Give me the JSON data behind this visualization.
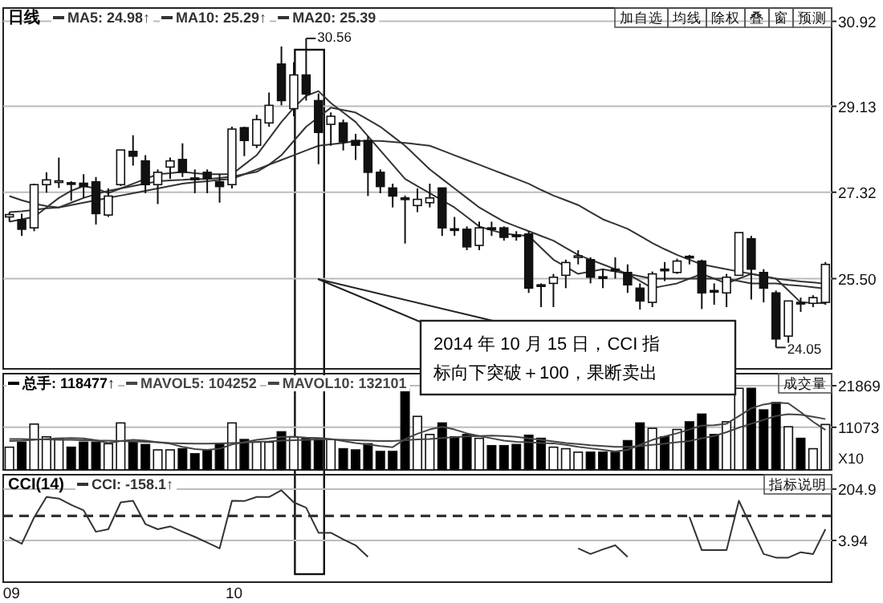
{
  "chart_data": [
    {
      "type": "candlestick",
      "title": "日线",
      "categories": [
        null,
        null,
        null,
        null,
        null,
        null,
        null,
        null,
        null,
        null,
        null,
        null,
        null,
        null,
        null,
        null,
        null,
        null,
        null,
        null,
        null,
        null,
        null,
        null,
        null,
        null,
        null,
        null,
        null,
        null,
        null,
        null,
        null,
        null,
        null,
        null,
        null,
        null,
        null,
        null,
        null,
        null,
        null,
        null,
        null,
        null,
        null,
        null,
        null,
        null,
        null,
        null,
        null,
        null,
        null,
        null,
        null,
        null,
        null,
        null,
        null,
        null,
        null,
        null,
        null,
        null,
        null
      ],
      "ohlc": [
        [
          26.8,
          26.9,
          26.7,
          26.85
        ],
        [
          26.74,
          26.87,
          26.4,
          26.54
        ],
        [
          26.57,
          27.5,
          26.5,
          27.48
        ],
        [
          27.48,
          27.74,
          27.31,
          27.58
        ],
        [
          27.55,
          28.05,
          27.41,
          27.56
        ],
        [
          27.52,
          27.55,
          27.14,
          27.5
        ],
        [
          27.51,
          27.7,
          27.2,
          27.44
        ],
        [
          27.54,
          27.64,
          26.64,
          26.87
        ],
        [
          26.84,
          27.4,
          26.8,
          27.24
        ],
        [
          27.48,
          28.21,
          27.45,
          28.21
        ],
        [
          28.18,
          28.52,
          27.88,
          28.08
        ],
        [
          27.98,
          28.1,
          27.3,
          27.48
        ],
        [
          27.48,
          27.8,
          27.07,
          27.74
        ],
        [
          27.85,
          28.05,
          27.6,
          27.98
        ],
        [
          28.01,
          28.35,
          27.64,
          27.74
        ],
        [
          27.62,
          27.8,
          27.3,
          27.6
        ],
        [
          27.74,
          27.8,
          27.3,
          27.61
        ],
        [
          27.54,
          27.7,
          27.1,
          27.44
        ],
        [
          27.48,
          28.7,
          27.4,
          28.65
        ],
        [
          28.68,
          28.7,
          28.08,
          28.41
        ],
        [
          28.31,
          28.95,
          28.25,
          28.85
        ],
        [
          28.78,
          29.42,
          28.7,
          29.15
        ],
        [
          30.02,
          30.39,
          29.15,
          29.25
        ],
        [
          29.08,
          30.06,
          28.92,
          29.79
        ],
        [
          29.79,
          30.56,
          29.25,
          29.39
        ],
        [
          29.25,
          29.4,
          27.91,
          28.58
        ],
        [
          28.75,
          29.0,
          28.3,
          28.92
        ],
        [
          28.78,
          28.85,
          28.2,
          28.38
        ],
        [
          28.41,
          28.55,
          28.0,
          28.31
        ],
        [
          28.41,
          28.5,
          27.24,
          27.74
        ],
        [
          27.74,
          27.8,
          27.3,
          27.44
        ],
        [
          27.41,
          27.5,
          27.0,
          27.24
        ],
        [
          27.2,
          27.25,
          26.24,
          27.18
        ],
        [
          27.04,
          27.4,
          26.9,
          27.17
        ],
        [
          27.1,
          27.5,
          27.0,
          27.2
        ],
        [
          27.41,
          27.41,
          26.4,
          26.57
        ],
        [
          26.55,
          26.8,
          26.4,
          26.52
        ],
        [
          26.54,
          26.6,
          26.1,
          26.17
        ],
        [
          26.2,
          26.7,
          26.1,
          26.57
        ],
        [
          26.57,
          26.7,
          26.4,
          26.55
        ],
        [
          26.57,
          26.6,
          26.3,
          26.37
        ],
        [
          26.42,
          26.5,
          26.3,
          26.4
        ],
        [
          26.44,
          26.5,
          25.2,
          25.3
        ],
        [
          25.37,
          25.4,
          24.9,
          25.35
        ],
        [
          25.4,
          25.6,
          24.9,
          25.53
        ],
        [
          25.57,
          25.9,
          25.3,
          25.84
        ],
        [
          25.96,
          26.1,
          25.8,
          25.98
        ],
        [
          25.9,
          25.95,
          25.4,
          25.53
        ],
        [
          25.54,
          25.7,
          25.3,
          25.52
        ],
        [
          25.7,
          25.95,
          25.5,
          25.68
        ],
        [
          25.63,
          25.8,
          25.2,
          25.37
        ],
        [
          25.3,
          25.4,
          24.85,
          25.03
        ],
        [
          25.0,
          25.65,
          24.9,
          25.6
        ],
        [
          25.7,
          25.85,
          25.45,
          25.68
        ],
        [
          25.63,
          25.92,
          25.6,
          25.87
        ],
        [
          25.97,
          26.0,
          25.8,
          25.95
        ],
        [
          25.87,
          25.9,
          24.86,
          25.2
        ],
        [
          25.25,
          25.4,
          24.95,
          25.23
        ],
        [
          25.2,
          25.6,
          24.9,
          25.53
        ],
        [
          25.57,
          26.47,
          25.57,
          26.47
        ],
        [
          26.34,
          26.4,
          25.06,
          25.7
        ],
        [
          25.63,
          25.7,
          25.0,
          25.3
        ],
        [
          25.2,
          25.25,
          24.05,
          24.23
        ],
        [
          24.29,
          25.03,
          24.15,
          25.03
        ],
        [
          25.0,
          25.1,
          24.8,
          24.98
        ],
        [
          24.98,
          25.15,
          24.9,
          25.1
        ],
        [
          25.0,
          25.85,
          24.95,
          25.8
        ]
      ],
      "series": [
        {
          "name": "MA5: 24.98↑",
          "type": "line",
          "color": "#333333",
          "values": [
            26.7,
            26.75,
            26.8,
            27.0,
            27.2,
            27.35,
            27.45,
            27.4,
            27.3,
            27.4,
            27.5,
            27.6,
            27.7,
            27.72,
            27.75,
            27.72,
            27.7,
            27.7,
            27.7,
            27.9,
            28.1,
            28.45,
            28.8,
            29.1,
            29.35,
            29.45,
            29.2,
            29.0,
            28.8,
            28.5,
            28.2,
            27.9,
            27.6,
            27.45,
            27.3,
            27.15,
            27.0,
            26.8,
            26.6,
            26.52,
            26.45,
            26.42,
            26.4,
            26.15,
            25.9,
            25.75,
            25.6,
            25.65,
            25.7,
            25.65,
            25.6,
            25.45,
            25.3,
            25.35,
            25.4,
            25.5,
            25.6,
            25.5,
            25.4,
            25.5,
            25.6,
            25.55,
            25.5,
            25.25,
            25.0,
            24.99,
            24.98
          ]
        },
        {
          "name": "MA10: 25.29↑",
          "type": "line",
          "color": "#333333",
          "values": [
            26.9,
            26.92,
            26.95,
            26.98,
            27.0,
            27.1,
            27.2,
            27.28,
            27.35,
            27.4,
            27.45,
            27.5,
            27.55,
            27.57,
            27.58,
            27.6,
            27.6,
            27.62,
            27.65,
            27.7,
            27.75,
            27.9,
            28.1,
            28.4,
            28.7,
            28.9,
            29.1,
            29.05,
            29.0,
            28.85,
            28.7,
            28.5,
            28.3,
            28.05,
            27.8,
            27.6,
            27.4,
            27.2,
            27.0,
            26.85,
            26.7,
            26.6,
            26.5,
            26.4,
            26.3,
            26.15,
            26.0,
            25.9,
            25.8,
            25.7,
            25.6,
            25.55,
            25.5,
            25.5,
            25.5,
            25.5,
            25.5,
            25.5,
            25.5,
            25.45,
            25.4,
            25.4,
            25.4,
            25.37,
            25.35,
            25.32,
            25.29
          ]
        },
        {
          "name": "MA20: 25.39",
          "type": "line",
          "color": "#333333",
          "values": [
            27.24,
            27.15,
            27.08,
            27.03,
            27.0,
            27.05,
            27.1,
            27.15,
            27.2,
            27.25,
            27.3,
            27.35,
            27.4,
            27.45,
            27.5,
            27.53,
            27.55,
            27.58,
            27.6,
            27.7,
            27.8,
            27.9,
            28.0,
            28.1,
            28.2,
            28.3,
            28.33,
            28.36,
            28.4,
            28.4,
            28.4,
            28.38,
            28.36,
            28.33,
            28.3,
            28.2,
            28.1,
            28.0,
            27.9,
            27.8,
            27.7,
            27.6,
            27.5,
            27.37,
            27.25,
            27.15,
            27.05,
            26.9,
            26.75,
            26.65,
            26.55,
            26.4,
            26.25,
            26.12,
            26.0,
            25.9,
            25.8,
            25.75,
            25.7,
            25.65,
            25.6,
            25.55,
            25.5,
            25.47,
            25.44,
            25.42,
            25.39
          ]
        }
      ],
      "ylim": [
        23.6,
        31.2
      ],
      "yticks": [
        30.92,
        29.13,
        27.32,
        {
          "value": 25.5,
          "label": "25.50"
        }
      ],
      "grid": "y",
      "tick_labels": "y",
      "legend": "top left",
      "annotations": [
        "加自选",
        "均线",
        "除权",
        "叠",
        "窗",
        "预测",
        "2014 年 10 月 15 日，CCI 指标向下突破＋100，果断卖出",
        "30.56",
        "24.05"
      ]
    },
    {
      "type": "bar",
      "categories": [
        null,
        null,
        null,
        null,
        null,
        null,
        null,
        null,
        null,
        null,
        null,
        null,
        null,
        null,
        null,
        null,
        null,
        null,
        null,
        null,
        null,
        null,
        null,
        null,
        null,
        null,
        null,
        null,
        null,
        null,
        null,
        null,
        null,
        null,
        null,
        null,
        null,
        null,
        null,
        null,
        null,
        null,
        null,
        null,
        null,
        null,
        null,
        null,
        null,
        null,
        null,
        null,
        null,
        null,
        null,
        null,
        null,
        null,
        null,
        null,
        null,
        null,
        null,
        null,
        null,
        null,
        null
      ],
      "series": [
        {
          "name": "总手: 118477↑",
          "type": "bar",
          "colors": [
            "#ffffff",
            "#000000",
            "#ffffff",
            "#ffffff",
            "#ffffff",
            "#000000",
            "#000000",
            "#000000",
            "#ffffff",
            "#ffffff",
            "#000000",
            "#000000",
            "#ffffff",
            "#ffffff",
            "#000000",
            "#000000",
            "#000000",
            "#000000",
            "#ffffff",
            "#000000",
            "#ffffff",
            "#ffffff",
            "#000000",
            "#ffffff",
            "#000000",
            "#000000",
            "#ffffff",
            "#000000",
            "#000000",
            "#000000",
            "#000000",
            "#000000",
            "#000000",
            "#ffffff",
            "#ffffff",
            "#000000",
            "#000000",
            "#000000",
            "#ffffff",
            "#000000",
            "#000000",
            "#000000",
            "#000000",
            "#000000",
            "#ffffff",
            "#ffffff",
            "#ffffff",
            "#000000",
            "#000000",
            "#000000",
            "#000000",
            "#000000",
            "#ffffff",
            "#000000",
            "#ffffff",
            "#000000",
            "#000000",
            "#000000",
            "#ffffff",
            "#ffffff",
            "#000000",
            "#000000",
            "#000000",
            "#ffffff",
            "#000000",
            "#ffffff",
            "#ffffff"
          ],
          "values": [
            5900,
            7200,
            11900,
            8600,
            8200,
            5900,
            7200,
            7200,
            6800,
            12200,
            7200,
            6600,
            5200,
            5200,
            5500,
            4200,
            5200,
            6800,
            12200,
            7900,
            7200,
            7200,
            9900,
            8600,
            8200,
            8200,
            7900,
            5500,
            5200,
            6800,
            4800,
            4800,
            21000,
            13900,
            9200,
            12200,
            8600,
            9200,
            8200,
            6300,
            6300,
            6600,
            9000,
            8200,
            5900,
            5500,
            4600,
            4600,
            4600,
            4600,
            7600,
            12200,
            10800,
            8600,
            10500,
            12500,
            14500,
            9200,
            12500,
            21200,
            21200,
            15600,
            17500,
            11200,
            8200,
            5500,
            11800
          ]
        },
        {
          "name": "MAVOL5: 104252",
          "type": "line",
          "color": "#444444",
          "values": [
            7500,
            7600,
            7800,
            8000,
            8200,
            8300,
            8200,
            7700,
            7000,
            7500,
            7800,
            7600,
            7200,
            6800,
            6000,
            5400,
            5200,
            5500,
            6600,
            7200,
            7800,
            8200,
            8600,
            8600,
            8400,
            8300,
            8000,
            7500,
            7000,
            6600,
            6200,
            5900,
            8000,
            9400,
            10500,
            11200,
            10500,
            9500,
            8800,
            8200,
            7600,
            7300,
            7200,
            7000,
            6900,
            6500,
            6000,
            5600,
            5200,
            4800,
            5200,
            6500,
            7800,
            8700,
            9500,
            10500,
            11500,
            11600,
            12000,
            14000,
            16000,
            17000,
            17500,
            17300,
            15000,
            12500,
            10400
          ]
        },
        {
          "name": "MAVOL10: 132101",
          "type": "line",
          "color": "#444444",
          "values": [
            8000,
            8000,
            7900,
            7900,
            7800,
            7800,
            7700,
            7600,
            7600,
            7500,
            7400,
            7300,
            7200,
            7000,
            6900,
            6800,
            6800,
            6900,
            7000,
            7100,
            7300,
            7400,
            7600,
            7700,
            7800,
            7900,
            7900,
            7800,
            7700,
            7600,
            7500,
            7500,
            7700,
            7900,
            8000,
            8300,
            8500,
            8700,
            8800,
            8900,
            8800,
            8600,
            8200,
            7800,
            7400,
            7000,
            6700,
            6400,
            6200,
            6000,
            6000,
            6200,
            6500,
            6800,
            7200,
            7500,
            8200,
            8800,
            9800,
            11000,
            12000,
            13000,
            14000,
            14500,
            14300,
            13800,
            13200
          ]
        }
      ],
      "ylim": [
        0,
        25000
      ],
      "yticks": [
        21869,
        11073
      ],
      "ylabel": "X10",
      "grid": "y",
      "tick_labels": "y",
      "legend": "top left",
      "annotations": [
        "成交量"
      ]
    },
    {
      "type": "line",
      "title": "CCI(14)",
      "categories": [
        "09",
        null,
        null,
        null,
        null,
        null,
        null,
        null,
        null,
        null,
        null,
        null,
        null,
        null,
        null,
        null,
        null,
        null,
        "10",
        null,
        null,
        null,
        null,
        null,
        null,
        null,
        null,
        null,
        null,
        null,
        null,
        null,
        null,
        null,
        null,
        null,
        null,
        null,
        null,
        null,
        null,
        null,
        null,
        null,
        null,
        null,
        null,
        null,
        null,
        null,
        null,
        null,
        null,
        null,
        null,
        null,
        null,
        null,
        null,
        null,
        null,
        null,
        null,
        null,
        null,
        null,
        null
      ],
      "series": [
        {
          "name": "CCI: -158.1↑",
          "color": "#333333",
          "values": [
            16,
            -9,
            94,
            174,
            168,
            143,
            122,
            38,
            48,
            153,
            159,
            68,
            48,
            59,
            38,
            18,
            -4,
            -27,
            159,
            158,
            174,
            174,
            200,
            153,
            132,
            34,
            34,
            8,
            -15,
            -60,
            null,
            null,
            null,
            null,
            null,
            null,
            null,
            null,
            null,
            null,
            null,
            null,
            null,
            null,
            null,
            null,
            -27,
            -49,
            -31,
            -15,
            -60,
            null,
            null,
            null,
            null,
            96,
            -34,
            -34,
            -34,
            159,
            56,
            -49,
            -63,
            -63,
            -42,
            -49,
            48
          ]
        }
      ],
      "ylim": [
        -159,
        261
      ],
      "yticks": [
        204.9,
        3.94
      ],
      "ref_lines": [
        {
          "axis": "y",
          "value": 100,
          "line_style": "dashed",
          "color": "#333333"
        }
      ],
      "grid": "y",
      "legend": "top left",
      "annotations": [
        "指标说明"
      ]
    }
  ]
}
